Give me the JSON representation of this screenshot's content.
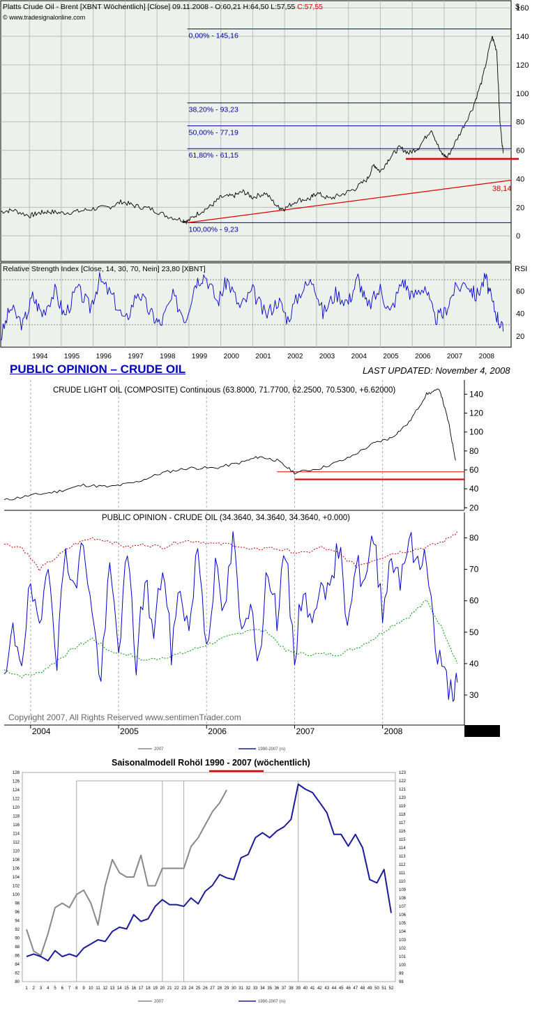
{
  "chart_data": [
    {
      "type": "line",
      "title": "Platts Crude Oil - Brent [XBNT  Wöchentlich] [Close] 09.11.2008 - O:60,21 H:64,50 L:57,55",
      "title_close": "C:57,55",
      "copyright": "© www.tradesignalonline.com",
      "unit": "$",
      "ylim": [
        -18,
        165
      ],
      "yticks": [
        "160",
        "140",
        "120",
        "100",
        "80",
        "60",
        "40",
        "20",
        "0"
      ],
      "ytick_values": [
        160,
        140,
        120,
        100,
        80,
        60,
        40,
        20,
        0
      ],
      "xticks": [
        "1994",
        "1995",
        "1996",
        "1997",
        "1998",
        "1999",
        "2000",
        "2001",
        "2002",
        "2003",
        "2004",
        "2005",
        "2006",
        "2007",
        "2008"
      ],
      "x_range": [
        1993.1,
        2009.1
      ],
      "fib_levels": [
        {
          "label": "0,00% - 145,16",
          "value": 145.16
        },
        {
          "label": "38,20% - 93,23",
          "value": 93.23
        },
        {
          "label": "50,00% - 77,19",
          "value": 77.19
        },
        {
          "label": "61,80% - 61,15",
          "value": 61.15
        },
        {
          "label": "100,00% - 9,23",
          "value": 9.23
        }
      ],
      "trendline_label": "38,14",
      "support_value": 54,
      "series": [
        {
          "x": [
            1993.1,
            1993.5,
            1994.0,
            1994.3,
            1994.6,
            1995.0,
            1995.5,
            1996.0,
            1996.5,
            1996.9,
            1997.3,
            1997.8,
            1998.3,
            1998.8,
            1998.95,
            1999.3,
            1999.7,
            2000.0,
            2000.4,
            2000.7,
            2001.0,
            2001.4,
            2001.8,
            2002.0,
            2002.4,
            2002.8,
            2003.0,
            2003.4,
            2003.8,
            2004.2,
            2004.6,
            2004.8,
            2005.0,
            2005.3,
            2005.6,
            2005.9,
            2006.2,
            2006.6,
            2006.9,
            2007.1,
            2007.5,
            2007.9,
            2008.2,
            2008.5,
            2008.65,
            2008.75,
            2008.85
          ],
          "y": [
            17,
            18,
            14,
            16,
            17,
            16,
            17,
            19,
            20,
            24,
            21,
            19,
            14,
            11,
            10,
            16,
            21,
            27,
            28,
            31,
            27,
            30,
            20,
            19,
            25,
            26,
            30,
            26,
            29,
            33,
            40,
            50,
            45,
            55,
            62,
            58,
            62,
            75,
            58,
            55,
            72,
            90,
            110,
            140,
            130,
            80,
            58
          ]
        }
      ]
    },
    {
      "type": "line",
      "title": "Relative Strength Index [Close, 14, 30, 70, Nein] 23,80 [XBNT]",
      "ylabel": "RSI",
      "ylim": [
        10,
        85
      ],
      "yticks": [
        "60",
        "40",
        "20"
      ],
      "ytick_values": [
        60,
        40,
        20
      ],
      "ref_levels": [
        70,
        30
      ],
      "series": [
        {
          "x": [
            1993.1,
            1993.4,
            1993.8,
            1994.1,
            1994.4,
            1994.8,
            1995.1,
            1995.5,
            1995.9,
            1996.2,
            1996.6,
            1997.0,
            1997.4,
            1997.8,
            1998.1,
            1998.5,
            1998.9,
            1999.2,
            1999.5,
            1999.9,
            2000.2,
            2000.6,
            2001.0,
            2001.4,
            2001.8,
            2002.1,
            2002.5,
            2002.9,
            2003.2,
            2003.6,
            2004.0,
            2004.3,
            2004.6,
            2005.0,
            2005.3,
            2005.7,
            2006.0,
            2006.4,
            2006.7,
            2007.0,
            2007.3,
            2007.7,
            2008.0,
            2008.3,
            2008.5,
            2008.7,
            2008.85
          ],
          "y": [
            18,
            45,
            30,
            55,
            40,
            60,
            38,
            62,
            45,
            70,
            55,
            32,
            60,
            40,
            30,
            55,
            35,
            68,
            75,
            50,
            70,
            45,
            60,
            38,
            52,
            35,
            60,
            70,
            40,
            58,
            50,
            72,
            45,
            62,
            40,
            70,
            55,
            65,
            35,
            40,
            60,
            68,
            55,
            72,
            50,
            35,
            24
          ]
        }
      ]
    },
    {
      "type": "line",
      "page_title": "PUBLIC OPINION – CRUDE OIL",
      "updated": "LAST UPDATED:  November 4, 2008",
      "title": "CRUDE LIGHT OIL (COMPOSITE) Continuous (63.8000, 71.7700, 62.2500, 70.5300, +6.62000)",
      "ylim": [
        18,
        155
      ],
      "yticks": [
        "140",
        "120",
        "100",
        "80",
        "60",
        "40",
        "20"
      ],
      "ytick_values": [
        140,
        120,
        100,
        80,
        60,
        40,
        20
      ],
      "support_values": [
        58,
        50
      ],
      "series": [
        {
          "x": [
            2003.7,
            2004.0,
            2004.3,
            2004.6,
            2004.9,
            2005.2,
            2005.5,
            2005.8,
            2006.1,
            2006.4,
            2006.6,
            2006.8,
            2007.0,
            2007.3,
            2007.6,
            2007.9,
            2008.1,
            2008.3,
            2008.5,
            2008.65,
            2008.75,
            2008.83
          ],
          "y": [
            28,
            33,
            37,
            44,
            42,
            47,
            57,
            62,
            62,
            68,
            74,
            70,
            57,
            62,
            72,
            88,
            94,
            110,
            140,
            145,
            110,
            70
          ]
        }
      ]
    },
    {
      "type": "line",
      "title": "PUBLIC OPINION - CRUDE OIL (34.3640, 34.3640, 34.3640, +0.000)",
      "copyright": "Copyright 2007, All Rights Reserved  www.sentimenTrader.com",
      "ylim": [
        22,
        85
      ],
      "yticks": [
        "80",
        "70",
        "60",
        "50",
        "40",
        "30"
      ],
      "ytick_values": [
        80,
        70,
        60,
        50,
        40,
        30
      ],
      "xticks": [
        "2004",
        "2005",
        "2006",
        "2007",
        "2008"
      ],
      "x_range": [
        2003.7,
        2008.93
      ],
      "series": [
        {
          "name": "",
          "x": [
            2003.7,
            2003.8,
            2003.9,
            2004.0,
            2004.1,
            2004.2,
            2004.3,
            2004.4,
            2004.5,
            2004.6,
            2004.7,
            2004.8,
            2004.9,
            2005.0,
            2005.1,
            2005.2,
            2005.3,
            2005.4,
            2005.5,
            2005.6,
            2005.7,
            2005.8,
            2005.9,
            2006.0,
            2006.1,
            2006.2,
            2006.3,
            2006.4,
            2006.5,
            2006.6,
            2006.7,
            2006.8,
            2006.9,
            2007.0,
            2007.1,
            2007.2,
            2007.3,
            2007.4,
            2007.5,
            2007.6,
            2007.7,
            2007.8,
            2007.9,
            2008.0,
            2008.1,
            2008.2,
            2008.3,
            2008.4,
            2008.5,
            2008.6,
            2008.7,
            2008.8,
            2008.85
          ],
          "y": [
            32,
            50,
            42,
            65,
            48,
            75,
            42,
            78,
            62,
            80,
            55,
            35,
            70,
            45,
            75,
            40,
            68,
            48,
            72,
            44,
            65,
            50,
            78,
            46,
            70,
            55,
            80,
            48,
            62,
            40,
            72,
            55,
            75,
            42,
            66,
            50,
            70,
            60,
            78,
            55,
            72,
            65,
            80,
            58,
            74,
            68,
            80,
            70,
            76,
            45,
            36,
            30,
            34
          ]
        },
        {
          "name": "",
          "x": [
            2003.7,
            2003.9,
            2004.1,
            2004.3,
            2004.5,
            2004.7,
            2004.9,
            2005.1,
            2005.3,
            2005.5,
            2005.7,
            2005.9,
            2006.1,
            2006.3,
            2006.5,
            2006.7,
            2006.9,
            2007.1,
            2007.3,
            2007.5,
            2007.7,
            2007.9,
            2008.1,
            2008.3,
            2008.5,
            2008.7,
            2008.85
          ],
          "y": [
            78,
            77,
            70,
            74,
            78,
            80,
            79,
            77,
            78,
            77,
            79,
            79,
            78,
            78,
            76,
            77,
            76,
            75,
            77,
            75,
            71,
            73,
            75,
            76,
            77,
            79,
            82
          ]
        },
        {
          "name": "",
          "x": [
            2003.7,
            2003.9,
            2004.1,
            2004.3,
            2004.5,
            2004.7,
            2004.9,
            2005.1,
            2005.3,
            2005.5,
            2005.7,
            2005.9,
            2006.1,
            2006.3,
            2006.5,
            2006.7,
            2006.9,
            2007.1,
            2007.3,
            2007.5,
            2007.7,
            2007.9,
            2008.1,
            2008.3,
            2008.5,
            2008.7,
            2008.85
          ],
          "y": [
            38,
            36,
            37,
            41,
            45,
            48,
            44,
            43,
            41,
            42,
            43,
            45,
            47,
            49,
            51,
            50,
            44,
            43,
            43,
            43,
            45,
            48,
            52,
            55,
            60,
            50,
            40
          ]
        }
      ]
    },
    {
      "type": "line",
      "title_prefix": "Saisonalmodell Rohöl ",
      "title_years": "1990 - 2007",
      "title_suffix": " (wöchentlich)",
      "ylim_left": [
        80,
        128
      ],
      "ylim_right": [
        98,
        123
      ],
      "x_range": [
        1,
        52
      ],
      "legend_top": [
        "2007",
        "1990-2007 (rs)"
      ],
      "legend_bottom": [
        "2007",
        "1990-2007 (rs)"
      ],
      "series": [
        {
          "name": "2007",
          "axis": "left",
          "x": [
            1,
            2,
            3,
            4,
            5,
            6,
            7,
            8,
            9,
            10,
            11,
            12,
            13,
            14,
            15,
            16,
            17,
            18,
            19,
            20,
            21,
            22,
            23,
            24,
            25,
            26,
            27,
            28,
            29
          ],
          "y": [
            92,
            87,
            86,
            91,
            97,
            98,
            97,
            100,
            101,
            98,
            93,
            102,
            108,
            105,
            104,
            104,
            109,
            102,
            102,
            106,
            106,
            106,
            106,
            111,
            113,
            116,
            119,
            121,
            124
          ]
        },
        {
          "name": "1990-2007 (rs)",
          "axis": "right",
          "x": [
            1,
            2,
            3,
            4,
            5,
            6,
            7,
            8,
            9,
            10,
            11,
            12,
            13,
            14,
            15,
            16,
            17,
            18,
            19,
            20,
            21,
            22,
            23,
            24,
            25,
            26,
            27,
            28,
            29,
            30,
            31,
            32,
            33,
            34,
            35,
            36,
            37,
            38,
            39,
            40,
            41,
            42,
            43,
            44,
            45,
            46,
            47,
            48,
            49,
            50,
            51,
            52
          ],
          "y": [
            101,
            101.3,
            101,
            100.5,
            101.7,
            101,
            101.3,
            101,
            102,
            102.5,
            103,
            102.8,
            104,
            104.5,
            104.3,
            106,
            105.2,
            105.5,
            107,
            107.8,
            107.2,
            107.2,
            107,
            108,
            107.3,
            108.8,
            109.5,
            110.8,
            110.4,
            110.2,
            112.8,
            113.2,
            115.2,
            115.8,
            115.2,
            116,
            116.5,
            117.4,
            121.6,
            121,
            120.6,
            119.4,
            118.2,
            115.6,
            115.6,
            114.2,
            115.6,
            114,
            110.2,
            109.8,
            111.4,
            106.2
          ]
        }
      ],
      "xticks": [
        "1",
        "2",
        "3",
        "4",
        "5",
        "6",
        "7",
        "8",
        "9",
        "10",
        "11",
        "12",
        "13",
        "14",
        "15",
        "16",
        "17",
        "18",
        "19",
        "20",
        "21",
        "22",
        "23",
        "24",
        "25",
        "26",
        "27",
        "28",
        "29",
        "30",
        "31",
        "32",
        "33",
        "34",
        "35",
        "36",
        "37",
        "38",
        "39",
        "40",
        "41",
        "42",
        "43",
        "44",
        "45",
        "46",
        "47",
        "48",
        "49",
        "50",
        "51",
        "52"
      ],
      "yticks_left": [
        "128",
        "126",
        "124",
        "122",
        "120",
        "118",
        "116",
        "114",
        "112",
        "110",
        "108",
        "106",
        "104",
        "102",
        "100",
        "98",
        "96",
        "94",
        "92",
        "90",
        "88",
        "86",
        "84",
        "82",
        "80"
      ],
      "yticks_right": [
        "123",
        "122",
        "121",
        "120",
        "119",
        "118",
        "117",
        "116",
        "115",
        "114",
        "113",
        "112",
        "111",
        "110",
        "109",
        "108",
        "107",
        "106",
        "105",
        "104",
        "103",
        "102",
        "101",
        "100",
        "99",
        "98"
      ]
    }
  ]
}
